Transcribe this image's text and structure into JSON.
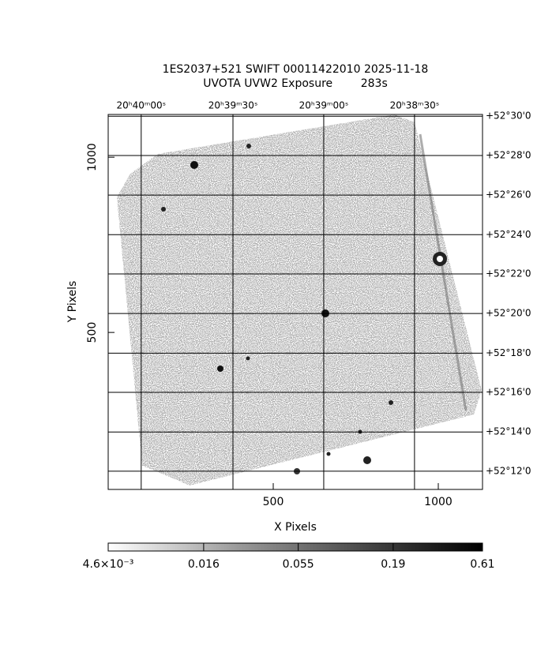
{
  "chart_data": {
    "type": "image",
    "title": "1ES2037+521 SWIFT 00011422010 2025-11-18",
    "subtitle": "UVOTA UVW2 Exposure        283s",
    "x_label": "X Pixels",
    "y_label": "Y Pixels",
    "xlim": [
      0,
      1134
    ],
    "ylim": [
      52,
      1122
    ],
    "xticks": [
      500,
      1000
    ],
    "yticks": [
      500,
      1000
    ],
    "ra_ticks": [
      {
        "value": 100,
        "label": "20ʰ40ᵐ00ˢ"
      },
      {
        "value": 378,
        "label": "20ʰ39ᵐ30ˢ"
      },
      {
        "value": 653,
        "label": "20ʰ39ᵐ00ˢ"
      },
      {
        "value": 928,
        "label": "20ʰ38ᵐ30ˢ"
      }
    ],
    "dec_ticks": [
      {
        "value": 1117,
        "label": "+52°30'0"
      },
      {
        "value": 1005,
        "label": "+52°28'0"
      },
      {
        "value": 892,
        "label": "+52°26'0"
      },
      {
        "value": 779,
        "label": "+52°24'0"
      },
      {
        "value": 667,
        "label": "+52°22'0"
      },
      {
        "value": 554,
        "label": "+52°20'0"
      },
      {
        "value": 441,
        "label": "+52°18'0"
      },
      {
        "value": 329,
        "label": "+52°16'0"
      },
      {
        "value": 216,
        "label": "+52°14'0"
      },
      {
        "value": 104,
        "label": "+52°12'0"
      }
    ],
    "grid": true,
    "colorbar": {
      "scale": "log",
      "lim": [
        0.0046,
        0.61
      ],
      "ticks": [
        {
          "value": 0.0046,
          "label": "4.6×10⁻³"
        },
        0.016,
        0.055,
        0.19,
        0.61
      ]
    }
  }
}
